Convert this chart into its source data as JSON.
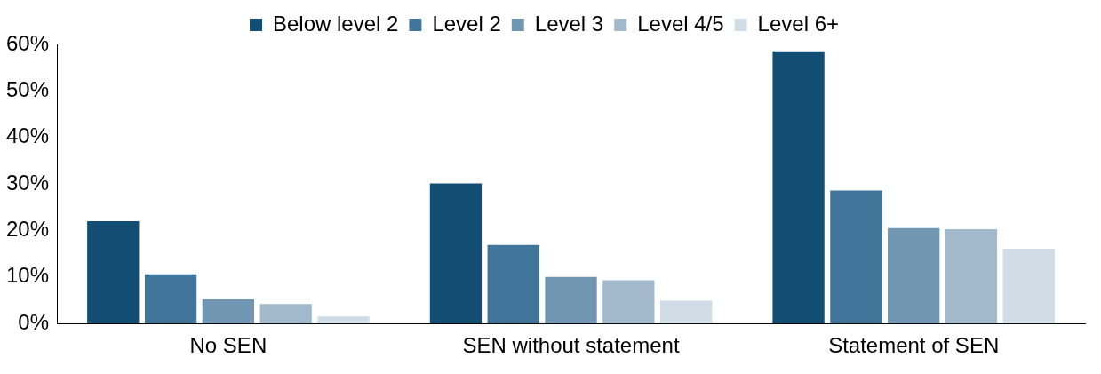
{
  "chart_data": {
    "type": "bar",
    "categories": [
      "No SEN",
      "SEN without statement",
      "Statement of SEN"
    ],
    "series": [
      {
        "name": "Below level 2",
        "color": "#124e74",
        "values": [
          22.0,
          30.1,
          58.5
        ]
      },
      {
        "name": "Level 2",
        "color": "#41759a",
        "values": [
          10.6,
          16.9,
          28.6
        ]
      },
      {
        "name": "Level 3",
        "color": "#7096b2",
        "values": [
          5.2,
          10.0,
          20.5
        ]
      },
      {
        "name": "Level 4/5",
        "color": "#a2b9cb",
        "values": [
          4.2,
          9.3,
          20.3
        ]
      },
      {
        "name": "Level 6+",
        "color": "#d0dde6",
        "values": [
          1.5,
          4.9,
          16.1
        ]
      }
    ],
    "ylim": [
      0,
      60
    ],
    "yticks": [
      {
        "value": 0,
        "label": "0%"
      },
      {
        "value": 10,
        "label": "10%"
      },
      {
        "value": 20,
        "label": "20%"
      },
      {
        "value": 30,
        "label": "30%"
      },
      {
        "value": 40,
        "label": "40%"
      },
      {
        "value": 50,
        "label": "50%"
      },
      {
        "value": 60,
        "label": "60%"
      }
    ],
    "grid": false,
    "legend": "top"
  }
}
